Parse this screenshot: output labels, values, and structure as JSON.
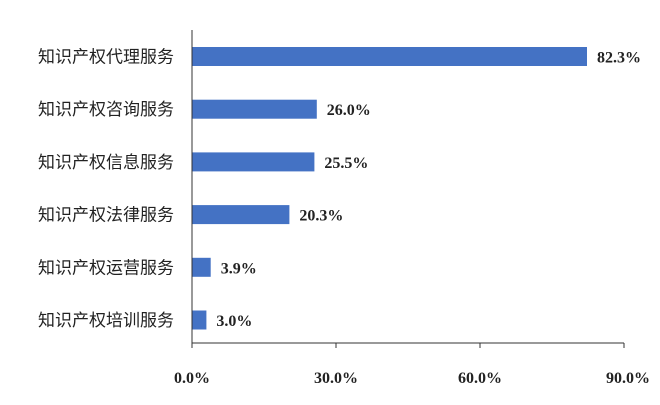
{
  "chart_data": {
    "type": "bar",
    "orientation": "horizontal",
    "categories": [
      "知识产权代理服务",
      "知识产权咨询服务",
      "知识产权信息服务",
      "知识产权法律服务",
      "知识产权运营服务",
      "知识产权培训服务"
    ],
    "values": [
      82.3,
      26.0,
      25.5,
      20.3,
      3.9,
      3.0
    ],
    "value_labels": [
      "82.3%",
      "26.0%",
      "25.5%",
      "20.3%",
      "3.9%",
      "3.0%"
    ],
    "xlim": [
      0,
      90
    ],
    "x_ticks": [
      0,
      30,
      60,
      90
    ],
    "x_tick_labels": [
      "0.0%",
      "30.0%",
      "60.0%",
      "90.0%"
    ],
    "bar_color": "#4472C4",
    "grid": false,
    "legend": "none"
  }
}
